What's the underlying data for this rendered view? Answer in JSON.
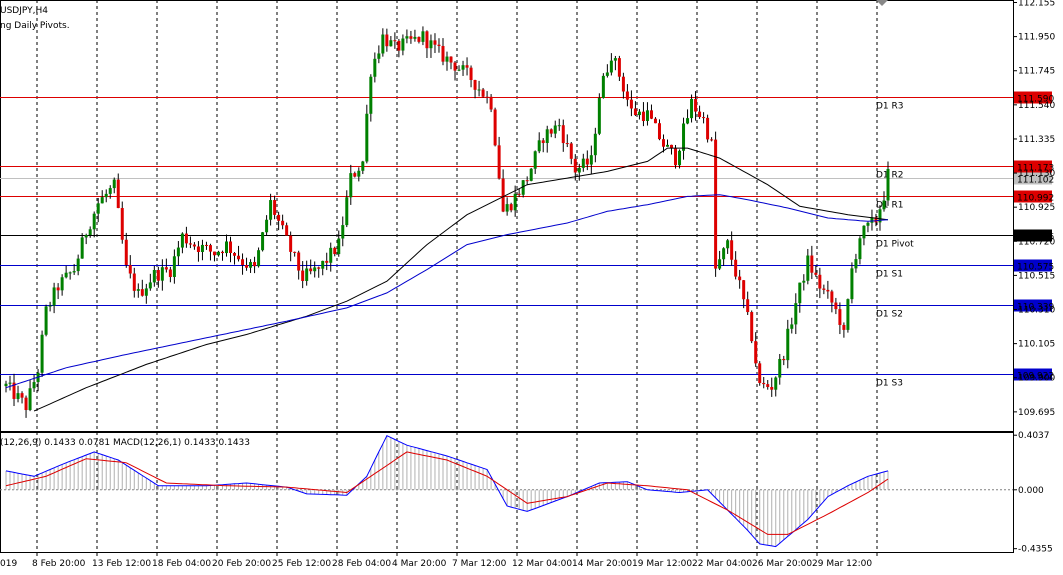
{
  "chart_data": {
    "type": "candlestick",
    "symbol_label": "USDJPY,H4",
    "indicator_label": "ng Daily Pivots.",
    "macd_label": "(12,26,9) 0.1433 0.0781 MACD(12,26,1) 0.1433 0.1433",
    "price_axis": {
      "min": 109.58,
      "max": 112.17,
      "ticks": [
        "112.155",
        "111.950",
        "111.745",
        "111.540",
        "111.335",
        "111.130",
        "110.925",
        "110.720",
        "110.515",
        "110.310",
        "110.105",
        "109.900",
        "109.695"
      ],
      "current_price": "111.102"
    },
    "time_axis": {
      "labels": [
        "019",
        "8 Feb 20:00",
        "13 Feb 12:00",
        "18 Feb 04:00",
        "20 Feb 20:00",
        "25 Feb 12:00",
        "28 Feb 04:00",
        "4 Mar 20:00",
        "7 Mar 12:00",
        "12 Mar 04:00",
        "14 Mar 20:00",
        "19 Mar 12:00",
        "22 Mar 04:00",
        "26 Mar 20:00",
        "29 Mar 12:00"
      ]
    },
    "pivot_levels": [
      {
        "name": "D1 R3",
        "value": 111.59,
        "label": "111.590",
        "color": "#dd0000"
      },
      {
        "name": "D1 R2",
        "value": 111.173,
        "label": "111.173",
        "color": "#dd0000"
      },
      {
        "name": "D1 R1",
        "value": 110.992,
        "label": "110.992",
        "color": "#dd0000"
      },
      {
        "name": "D1 Pivot",
        "value": 110.756,
        "label": "110.756",
        "color": "#000000"
      },
      {
        "name": "D1 S1",
        "value": 110.575,
        "label": "110.575",
        "color": "#0000cc"
      },
      {
        "name": "D1 S2",
        "value": 110.339,
        "label": "110.339",
        "color": "#0000cc"
      },
      {
        "name": "D1 S3",
        "value": 109.922,
        "label": "109.922",
        "color": "#0000cc"
      }
    ],
    "ma_fast": [
      [
        7,
        109.7
      ],
      [
        20,
        109.84
      ],
      [
        35,
        109.98
      ],
      [
        50,
        110.1
      ],
      [
        60,
        110.16
      ],
      [
        75,
        110.27
      ],
      [
        85,
        110.36
      ],
      [
        95,
        110.48
      ],
      [
        105,
        110.7
      ],
      [
        115,
        110.88
      ],
      [
        125,
        111.0
      ],
      [
        130,
        111.06
      ],
      [
        140,
        111.1
      ],
      [
        150,
        111.14
      ],
      [
        160,
        111.2
      ],
      [
        165,
        111.28
      ],
      [
        170,
        111.28
      ],
      [
        178,
        111.22
      ],
      [
        190,
        111.06
      ],
      [
        198,
        110.93
      ],
      [
        210,
        110.88
      ],
      [
        220,
        110.85
      ]
    ],
    "ma_slow": [
      [
        0,
        109.84
      ],
      [
        15,
        109.96
      ],
      [
        30,
        110.04
      ],
      [
        50,
        110.14
      ],
      [
        70,
        110.24
      ],
      [
        85,
        110.32
      ],
      [
        95,
        110.41
      ],
      [
        105,
        110.55
      ],
      [
        115,
        110.7
      ],
      [
        125,
        110.76
      ],
      [
        140,
        110.83
      ],
      [
        150,
        110.9
      ],
      [
        160,
        110.94
      ],
      [
        170,
        110.99
      ],
      [
        178,
        111.0
      ],
      [
        185,
        110.97
      ],
      [
        195,
        110.92
      ],
      [
        205,
        110.86
      ],
      [
        215,
        110.84
      ],
      [
        220,
        110.85
      ]
    ],
    "macd_axis": {
      "min": -0.46,
      "max": 0.42,
      "ticks": [
        "0.4037",
        "0.000",
        "-0.4355"
      ]
    },
    "macd_anchors": [
      [
        0,
        0.14
      ],
      [
        7,
        0.1
      ],
      [
        15,
        0.2
      ],
      [
        22,
        0.28
      ],
      [
        28,
        0.22
      ],
      [
        38,
        0.03
      ],
      [
        50,
        0.03
      ],
      [
        60,
        0.05
      ],
      [
        70,
        0.02
      ],
      [
        75,
        -0.03
      ],
      [
        85,
        -0.04
      ],
      [
        90,
        0.1
      ],
      [
        95,
        0.4
      ],
      [
        100,
        0.33
      ],
      [
        110,
        0.25
      ],
      [
        120,
        0.15
      ],
      [
        125,
        -0.12
      ],
      [
        130,
        -0.16
      ],
      [
        140,
        -0.05
      ],
      [
        148,
        0.05
      ],
      [
        155,
        0.06
      ],
      [
        160,
        0.0
      ],
      [
        168,
        -0.02
      ],
      [
        175,
        0.0
      ],
      [
        180,
        -0.15
      ],
      [
        185,
        -0.3
      ],
      [
        188,
        -0.4
      ],
      [
        192,
        -0.42
      ],
      [
        200,
        -0.22
      ],
      [
        205,
        -0.05
      ],
      [
        210,
        0.03
      ],
      [
        215,
        0.1
      ],
      [
        220,
        0.14
      ]
    ],
    "signal_anchors": [
      [
        0,
        0.03
      ],
      [
        10,
        0.1
      ],
      [
        20,
        0.23
      ],
      [
        30,
        0.2
      ],
      [
        40,
        0.05
      ],
      [
        55,
        0.03
      ],
      [
        70,
        0.02
      ],
      [
        85,
        -0.02
      ],
      [
        95,
        0.18
      ],
      [
        100,
        0.28
      ],
      [
        110,
        0.22
      ],
      [
        120,
        0.1
      ],
      [
        130,
        -0.1
      ],
      [
        140,
        -0.05
      ],
      [
        150,
        0.05
      ],
      [
        160,
        0.03
      ],
      [
        170,
        0.0
      ],
      [
        180,
        -0.15
      ],
      [
        190,
        -0.33
      ],
      [
        195,
        -0.33
      ],
      [
        205,
        -0.18
      ],
      [
        215,
        -0.02
      ],
      [
        220,
        0.08
      ]
    ],
    "ohlc_anchors": [
      [
        0,
        109.85
      ],
      [
        5,
        109.73
      ],
      [
        8,
        109.95
      ],
      [
        10,
        110.3
      ],
      [
        13,
        110.45
      ],
      [
        17,
        110.55
      ],
      [
        20,
        110.78
      ],
      [
        23,
        110.95
      ],
      [
        27,
        111.05
      ],
      [
        30,
        110.55
      ],
      [
        33,
        110.4
      ],
      [
        37,
        110.52
      ],
      [
        41,
        110.55
      ],
      [
        44,
        110.75
      ],
      [
        47,
        110.7
      ],
      [
        52,
        110.65
      ],
      [
        55,
        110.7
      ],
      [
        59,
        110.6
      ],
      [
        62,
        110.55
      ],
      [
        66,
        110.95
      ],
      [
        70,
        110.72
      ],
      [
        74,
        110.5
      ],
      [
        78,
        110.55
      ],
      [
        83,
        110.7
      ],
      [
        86,
        111.1
      ],
      [
        89,
        111.2
      ],
      [
        91,
        111.75
      ],
      [
        94,
        111.95
      ],
      [
        97,
        111.88
      ],
      [
        101,
        111.92
      ],
      [
        104,
        111.95
      ],
      [
        108,
        111.85
      ],
      [
        112,
        111.78
      ],
      [
        116,
        111.7
      ],
      [
        121,
        111.55
      ],
      [
        124,
        110.9
      ],
      [
        126,
        110.95
      ],
      [
        130,
        111.1
      ],
      [
        134,
        111.35
      ],
      [
        138,
        111.42
      ],
      [
        142,
        111.15
      ],
      [
        146,
        111.2
      ],
      [
        148,
        111.6
      ],
      [
        151,
        111.85
      ],
      [
        153,
        111.72
      ],
      [
        156,
        111.5
      ],
      [
        160,
        111.48
      ],
      [
        164,
        111.3
      ],
      [
        167,
        111.22
      ],
      [
        171,
        111.55
      ],
      [
        174,
        111.45
      ],
      [
        176,
        111.3
      ],
      [
        177,
        110.55
      ],
      [
        180,
        110.7
      ],
      [
        183,
        110.45
      ],
      [
        186,
        110.15
      ],
      [
        188,
        109.85
      ],
      [
        191,
        109.85
      ],
      [
        194,
        110.05
      ],
      [
        197,
        110.35
      ],
      [
        200,
        110.6
      ],
      [
        203,
        110.45
      ],
      [
        206,
        110.35
      ],
      [
        208,
        110.25
      ],
      [
        209,
        110.15
      ],
      [
        211,
        110.55
      ],
      [
        213,
        110.75
      ],
      [
        215,
        110.8
      ],
      [
        217,
        110.85
      ],
      [
        219,
        111.0
      ],
      [
        220,
        111.12
      ]
    ],
    "series": [
      {
        "name": "D1 Pivot"
      }
    ]
  }
}
